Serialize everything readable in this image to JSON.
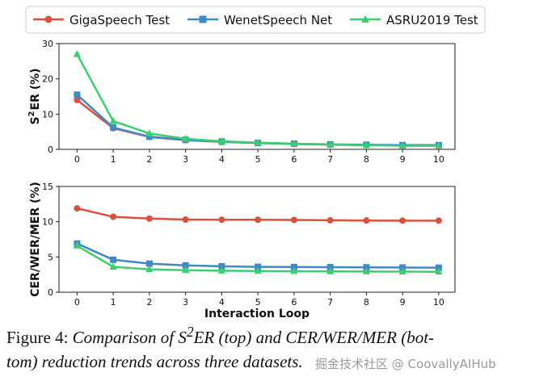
{
  "colors": {
    "red": "#d9503f",
    "blue": "#3d8ac4",
    "green": "#3ccf71"
  },
  "legend": [
    "GigaSpeech Test",
    "WenetSpeech Net",
    "ASRU2019 Test"
  ],
  "chart_data": [
    {
      "type": "line",
      "ylabel_prefix": "S",
      "ylabel_sup": "2",
      "ylabel_rest": "ER (%)",
      "xlabel": "",
      "ylim": [
        0,
        30
      ],
      "yticks": [
        0,
        10,
        20,
        30
      ],
      "x": [
        0,
        1,
        2,
        3,
        4,
        5,
        6,
        7,
        8,
        9,
        10
      ],
      "series": [
        {
          "name": "GigaSpeech Test",
          "marker": "circle",
          "values": [
            14.0,
            6.0,
            3.5,
            2.6,
            2.1,
            1.8,
            1.5,
            1.3,
            1.2,
            1.1,
            1.1
          ]
        },
        {
          "name": "WenetSpeech Net",
          "marker": "square",
          "values": [
            15.5,
            6.2,
            3.6,
            2.7,
            2.2,
            1.8,
            1.6,
            1.4,
            1.3,
            1.2,
            1.2
          ]
        },
        {
          "name": "ASRU2019 Test",
          "marker": "triangle",
          "values": [
            27.0,
            8.0,
            4.5,
            3.0,
            2.3,
            1.9,
            1.6,
            1.4,
            1.2,
            1.0,
            1.0
          ]
        }
      ]
    },
    {
      "type": "line",
      "ylabel": "CER/WER/MER (%)",
      "xlabel": "Interaction Loop",
      "ylim": [
        0,
        15
      ],
      "yticks": [
        0,
        5,
        10,
        15
      ],
      "x": [
        0,
        1,
        2,
        3,
        4,
        5,
        6,
        7,
        8,
        9,
        10
      ],
      "series": [
        {
          "name": "GigaSpeech Test",
          "marker": "circle",
          "values": [
            11.9,
            10.7,
            10.45,
            10.3,
            10.28,
            10.27,
            10.25,
            10.2,
            10.17,
            10.15,
            10.15
          ]
        },
        {
          "name": "WenetSpeech Net",
          "marker": "square",
          "values": [
            6.9,
            4.6,
            4.05,
            3.8,
            3.68,
            3.6,
            3.57,
            3.55,
            3.53,
            3.5,
            3.48
          ]
        },
        {
          "name": "ASRU2019 Test",
          "marker": "triangle",
          "values": [
            6.6,
            3.6,
            3.25,
            3.12,
            3.05,
            3.0,
            2.97,
            2.95,
            2.93,
            2.92,
            2.9
          ]
        }
      ]
    }
  ],
  "caption": {
    "prefix": "Figure 4:",
    "part1": "Comparison of S",
    "sup": "2",
    "part2": "ER (top) and CER/WER/MER (bot-",
    "part3": "tom) reduction trends across three datasets."
  },
  "watermark": "掘金技术社区 @ CoovallyAIHub"
}
